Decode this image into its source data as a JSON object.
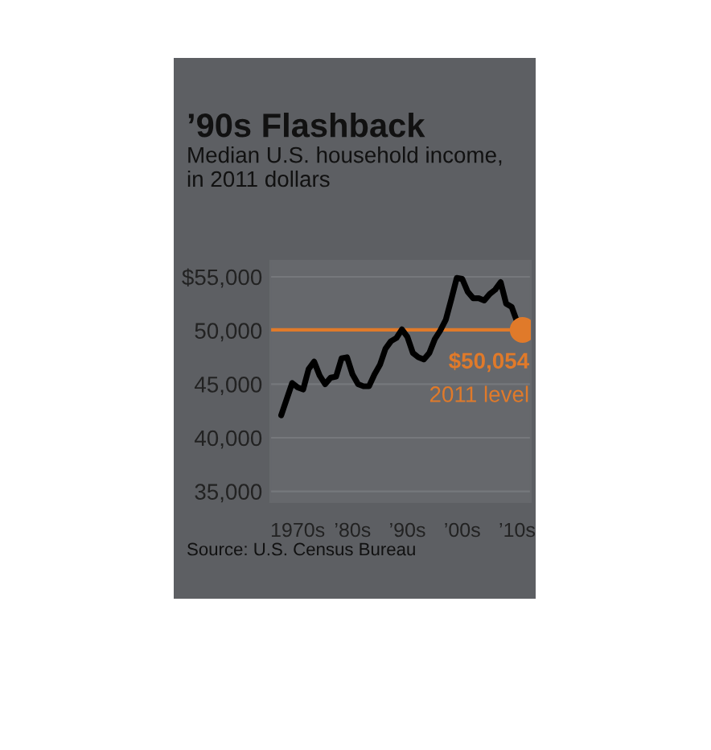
{
  "chart_data": {
    "type": "line",
    "title": "’90s Flashback",
    "subtitle": "Median U.S. household income,\nin 2011 dollars",
    "categories": [
      null,
      null,
      null,
      "1970s",
      null,
      null,
      null,
      null,
      null,
      null,
      null,
      null,
      null,
      "’80s",
      null,
      null,
      null,
      null,
      null,
      null,
      null,
      null,
      null,
      "’90s",
      null,
      null,
      null,
      null,
      null,
      null,
      null,
      null,
      null,
      "’00s",
      null,
      null,
      null,
      null,
      null,
      null,
      null,
      null,
      null,
      "’10s",
      null
    ],
    "series": [
      {
        "color": "#000000",
        "values": [
          42100,
          43600,
          45100,
          44700,
          44500,
          46400,
          47100,
          45800,
          45000,
          45600,
          45700,
          47400,
          47500,
          45900,
          45000,
          44800,
          44800,
          45900,
          46800,
          48300,
          49000,
          49300,
          50100,
          49400,
          47900,
          47500,
          47300,
          47900,
          49200,
          50000,
          51000,
          52900,
          54900,
          54800,
          53600,
          53000,
          53000,
          52800,
          53400,
          53800,
          54500,
          52500,
          52200,
          50800,
          50054
        ]
      },
      {
        "type": "scatter",
        "marker": "circle",
        "color": "#e07a2a",
        "values": [
          null,
          null,
          null,
          null,
          null,
          null,
          null,
          null,
          null,
          null,
          null,
          null,
          null,
          null,
          null,
          null,
          null,
          null,
          null,
          null,
          null,
          null,
          null,
          null,
          null,
          null,
          null,
          null,
          null,
          null,
          null,
          null,
          null,
          null,
          null,
          null,
          null,
          null,
          null,
          null,
          null,
          null,
          null,
          null,
          50054
        ]
      }
    ],
    "ylim": [
      34000,
      56500
    ],
    "yticks": [
      {
        "value": 35000,
        "label": "35,000"
      },
      {
        "value": 40000,
        "label": "40,000"
      },
      {
        "value": 45000,
        "label": "45,000"
      },
      {
        "value": 50000,
        "label": "50,000"
      },
      {
        "value": 55000,
        "label": "$55,000"
      }
    ],
    "ref_lines": [
      {
        "axis": "y",
        "value": 50054,
        "color": "#e07a2a"
      }
    ],
    "annotations": [
      {
        "text": "$50,054",
        "y": 50054
      },
      "2011 level",
      "Source: U.S. Census Bureau"
    ],
    "grid": "y",
    "line_style": "solid",
    "marker": "none"
  }
}
